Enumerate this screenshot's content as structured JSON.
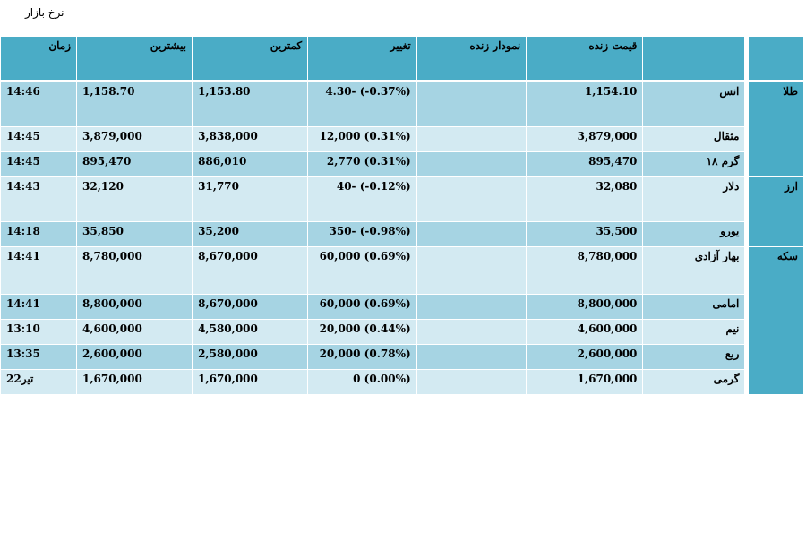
{
  "page_title": "نرخ بازار",
  "headers": {
    "price": "قیمت زنده",
    "chart": "نمودار زنده",
    "change": "تغییر",
    "low": "کمترین",
    "high": "بیشترین",
    "time": "زمان"
  },
  "groups": {
    "gold": "طلا",
    "currency": "ارز",
    "coin": "سکه"
  },
  "rows": [
    {
      "name": "انس",
      "price": "1,154.10",
      "change": "4.30- (-0.37%)",
      "low": "1,153.80",
      "high": "1,158.70",
      "time": "14:46"
    },
    {
      "name": "مثقال",
      "price": "3,879,000",
      "change": "12,000 (0.31%)",
      "low": "3,838,000",
      "high": "3,879,000",
      "time": "14:45"
    },
    {
      "name": "گرم ۱۸",
      "price": "895,470",
      "change": "2,770 (0.31%)",
      "low": "886,010",
      "high": "895,470",
      "time": "14:45"
    },
    {
      "name": "دلار",
      "price": "32,080",
      "change": "40- (-0.12%)",
      "low": "31,770",
      "high": "32,120",
      "time": "14:43"
    },
    {
      "name": "یورو",
      "price": "35,500",
      "change": "350- (-0.98%)",
      "low": "35,200",
      "high": "35,850",
      "time": "14:18"
    },
    {
      "name": "بهار آزادی",
      "price": "8,780,000",
      "change": "60,000 (0.69%)",
      "low": "8,670,000",
      "high": "8,780,000",
      "time": "14:41"
    },
    {
      "name": "امامی",
      "price": "8,800,000",
      "change": "60,000 (0.69%)",
      "low": "8,670,000",
      "high": "8,800,000",
      "time": "14:41"
    },
    {
      "name": "نیم",
      "price": "4,600,000",
      "change": "20,000 (0.44%)",
      "low": "4,580,000",
      "high": "4,600,000",
      "time": "13:10"
    },
    {
      "name": "ربع",
      "price": "2,600,000",
      "change": "20,000 (0.78%)",
      "low": "2,580,000",
      "high": "2,600,000",
      "time": "13:35"
    },
    {
      "name": "گرمی",
      "price": "1,670,000",
      "change": "0 (0.00%)",
      "low": "1,670,000",
      "high": "1,670,000",
      "time": "22تیر"
    }
  ]
}
